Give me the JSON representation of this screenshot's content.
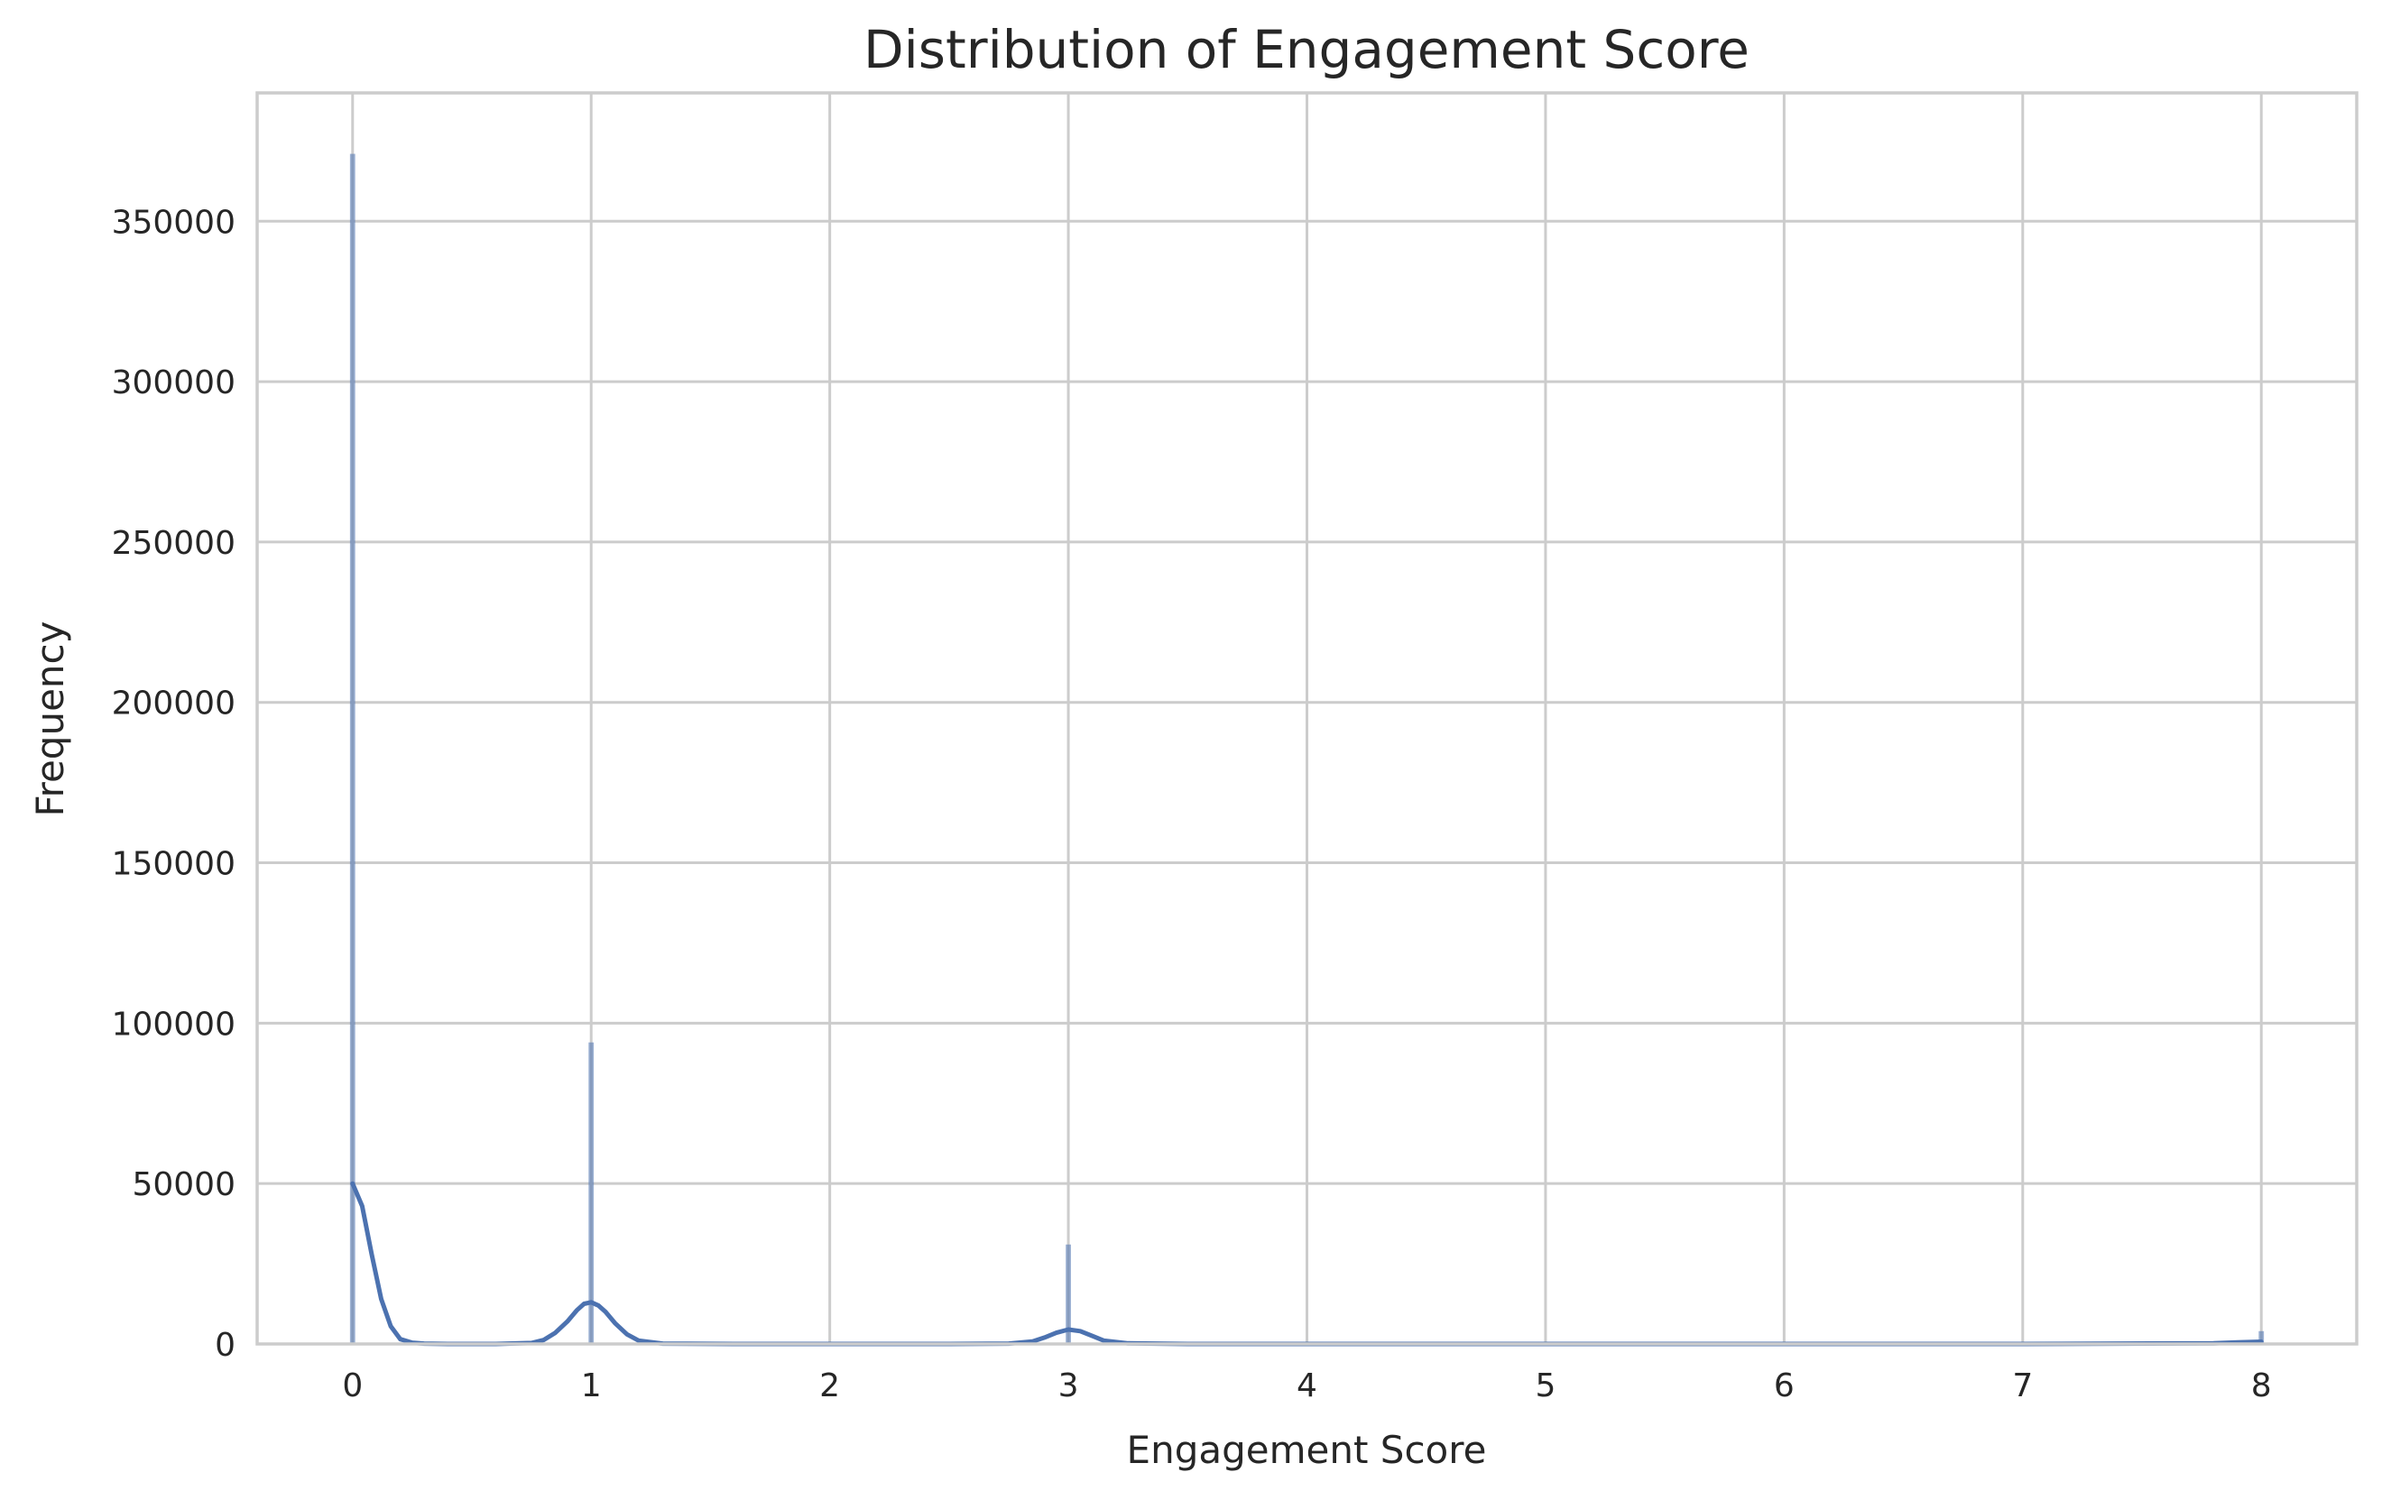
{
  "chart_data": {
    "type": "bar",
    "title": "Distribution of Engagement Score",
    "xlabel": "Engagement Score",
    "ylabel": "Frequency",
    "xlim": [
      -0.4,
      8.4
    ],
    "ylim": [
      0,
      390000
    ],
    "xticks": [
      0,
      1,
      2,
      3,
      4,
      5,
      6,
      7,
      8
    ],
    "yticks": [
      0,
      50000,
      100000,
      150000,
      200000,
      250000,
      300000,
      350000
    ],
    "grid": true,
    "legend": "none",
    "bar_color": "#4c72b0",
    "histogram": {
      "bars": [
        {
          "x": 0,
          "count": 371000
        },
        {
          "x": 1,
          "count": 94000
        },
        {
          "x": 3,
          "count": 31000
        },
        {
          "x": 8,
          "count": 4000
        }
      ]
    },
    "kde": {
      "x": [
        0,
        0.04,
        0.08,
        0.12,
        0.16,
        0.2,
        0.25,
        0.3,
        0.4,
        0.6,
        0.75,
        0.8,
        0.85,
        0.9,
        0.94,
        0.97,
        1.0,
        1.03,
        1.06,
        1.1,
        1.15,
        1.2,
        1.3,
        1.6,
        2.0,
        2.5,
        2.75,
        2.85,
        2.9,
        2.95,
        3.0,
        3.05,
        3.1,
        3.15,
        3.25,
        3.5,
        5.0,
        7.0,
        7.8,
        7.9,
        8.0
      ],
      "y": [
        50000,
        43000,
        28000,
        14000,
        5500,
        1500,
        400,
        100,
        0,
        0,
        300,
        1200,
        3500,
        7000,
        10500,
        12500,
        13000,
        12000,
        10000,
        6500,
        3000,
        1000,
        100,
        0,
        0,
        0,
        100,
        800,
        2000,
        3500,
        4500,
        4000,
        2500,
        1000,
        200,
        0,
        0,
        0,
        200,
        500,
        700
      ]
    }
  }
}
